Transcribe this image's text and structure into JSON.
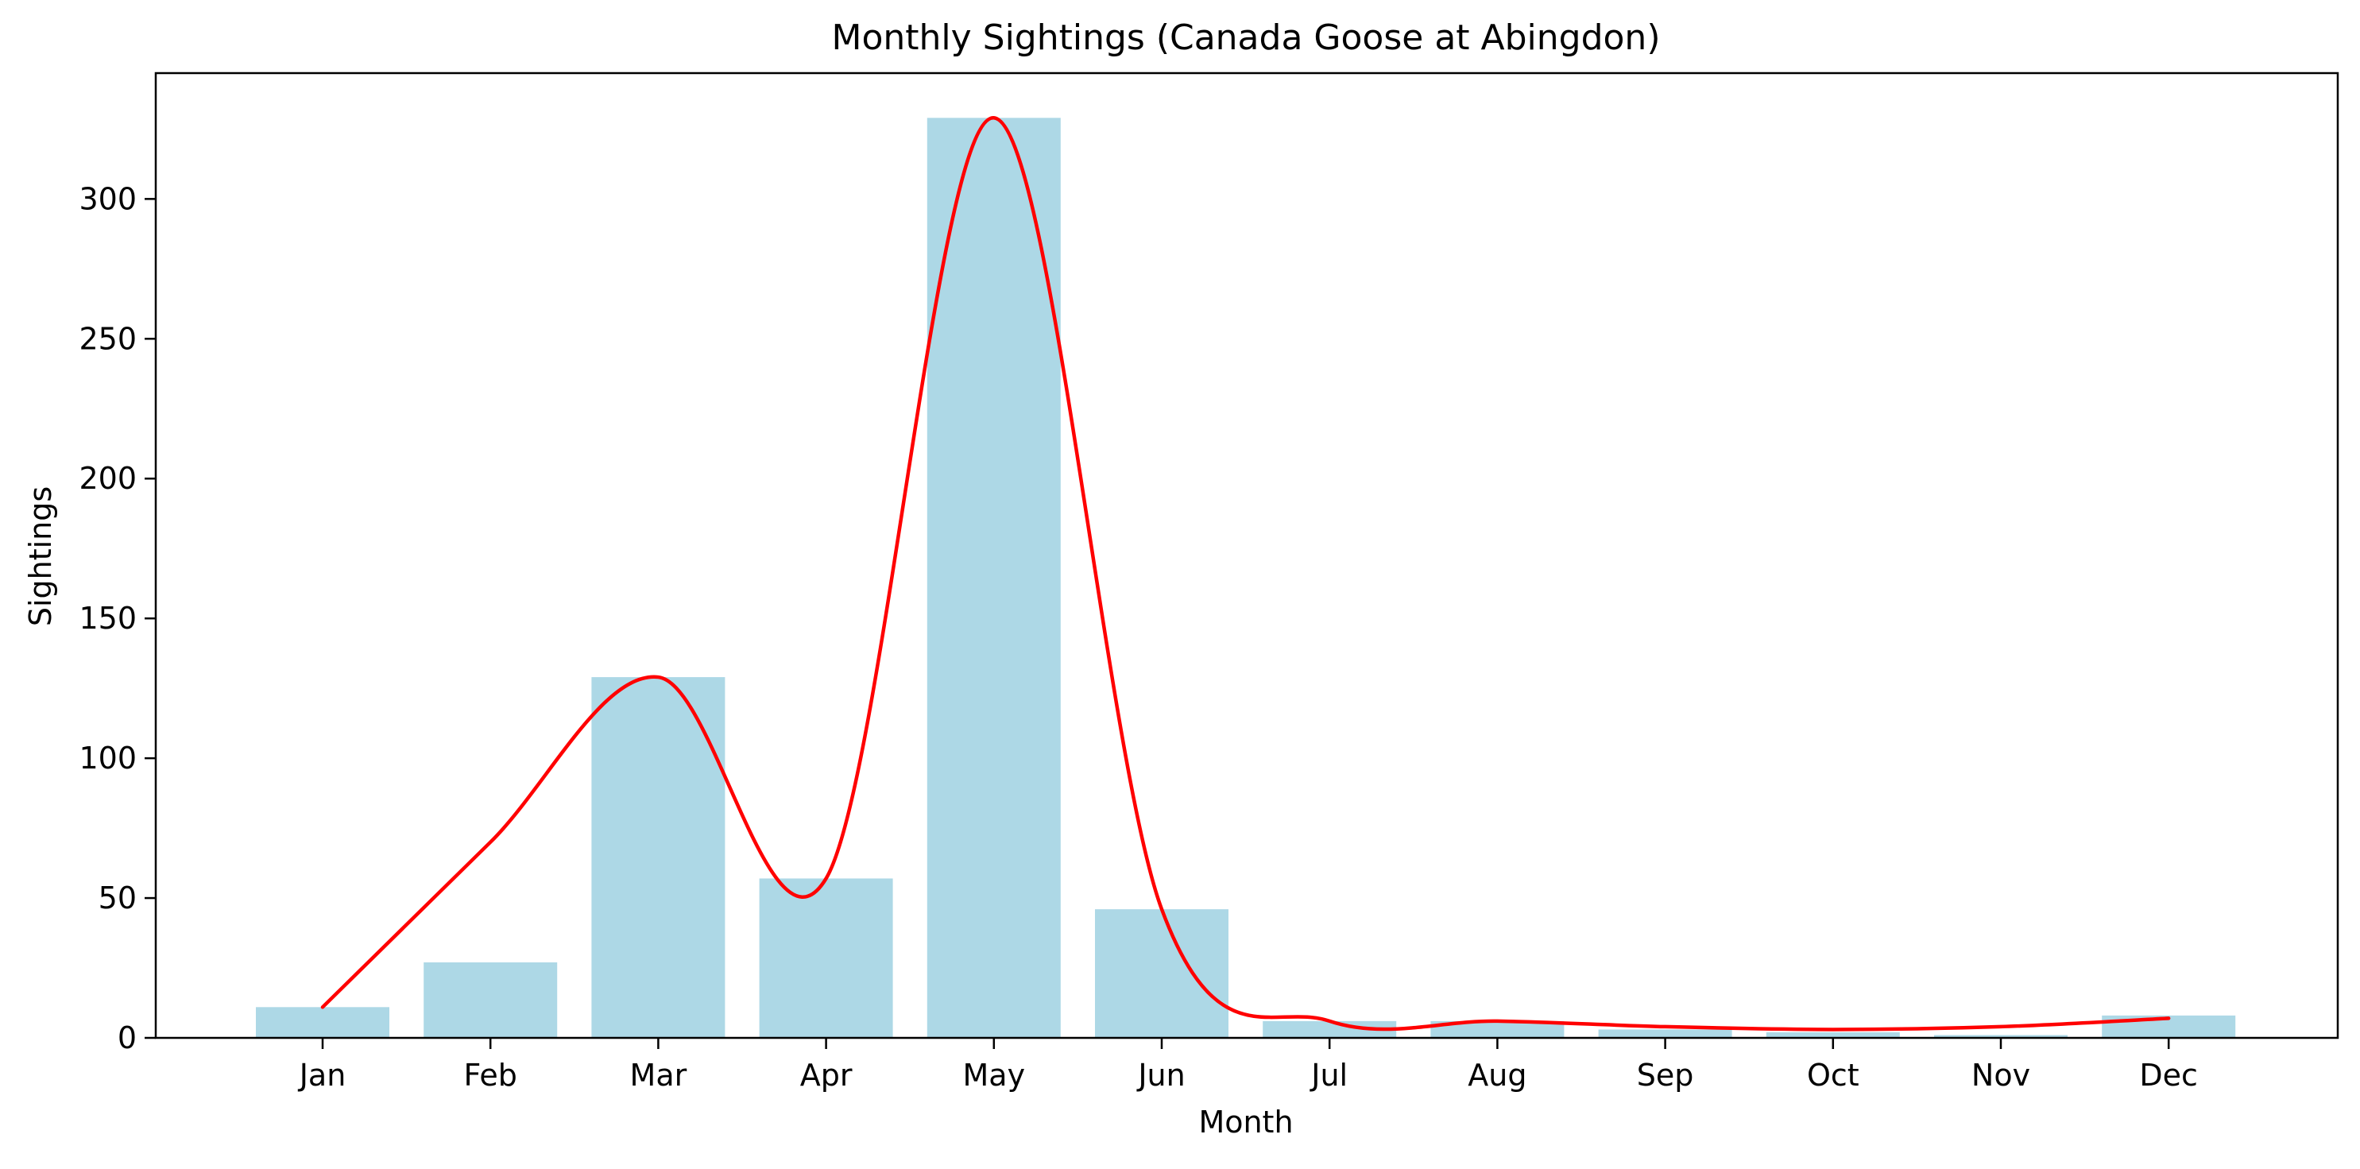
{
  "chart_data": {
    "type": "bar",
    "title": "Monthly Sightings (Canada Goose at Abingdon)",
    "xlabel": "Month",
    "ylabel": "Sightings",
    "categories": [
      "Jan",
      "Feb",
      "Mar",
      "Apr",
      "May",
      "Jun",
      "Jul",
      "Aug",
      "Sep",
      "Oct",
      "Nov",
      "Dec"
    ],
    "values": [
      11,
      27,
      129,
      57,
      329,
      46,
      6,
      6,
      3,
      2,
      1,
      8
    ],
    "trend_line": [
      11,
      70,
      129,
      57,
      329,
      46,
      6,
      6,
      4,
      3,
      4,
      7
    ],
    "ylim": [
      0,
      345
    ],
    "yticks": [
      0,
      50,
      100,
      150,
      200,
      250,
      300
    ],
    "grid": false,
    "colors": {
      "bar": "#add8e6",
      "line": "#ff0000",
      "axes": "#000000"
    }
  }
}
